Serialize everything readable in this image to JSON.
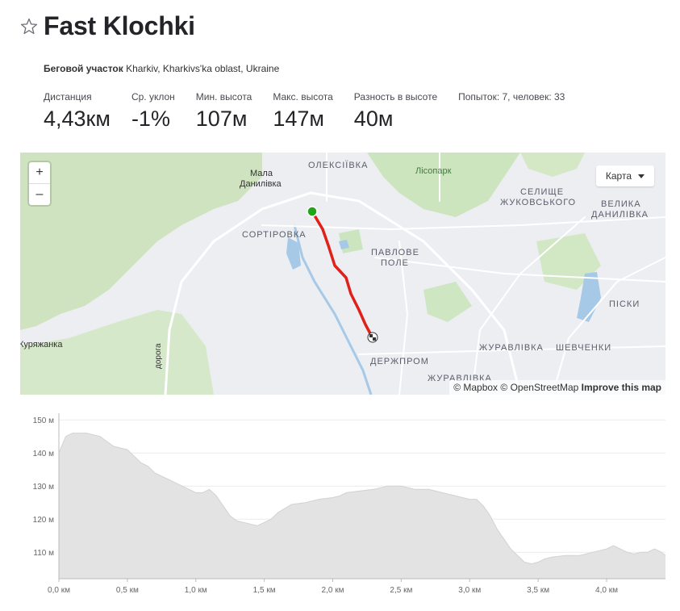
{
  "header": {
    "title": "Fast Klochki",
    "star_icon": "star-outline-icon"
  },
  "location": {
    "type_label": "Беговой участок",
    "place": "Kharkiv, Kharkivs'ka oblast, Ukraine"
  },
  "stats": [
    {
      "label": "Дистанция",
      "value": "4,43км"
    },
    {
      "label": "Ср. уклон",
      "value": "-1%"
    },
    {
      "label": "Мин. высота",
      "value": "107м"
    },
    {
      "label": "Макс. высота",
      "value": "147м"
    },
    {
      "label": "Разность в высоте",
      "value": "40м"
    }
  ],
  "attempts": {
    "label": "Попыток: 7, человек: 33"
  },
  "map": {
    "zoom_in": "+",
    "zoom_out": "–",
    "map_type": "Карта",
    "attribution": {
      "mapbox": "© Mapbox",
      "osm": "© OpenStreetMap",
      "improve": "Improve this map"
    },
    "labels": {
      "mala": "Мала",
      "danylivka": "Данилівка",
      "oleksiivka": "ОЛЕКСІЇВКА",
      "lisopark": "Лісопарк",
      "selyshche": "СЕЛИЩЕ",
      "zhukovskoho": "ЖУКОВСЬКОГО",
      "velyka": "ВЕЛИКА",
      "danylivka_big": "ДАНИЛІВКА",
      "sortirovka": "СОРТІРОВКА",
      "pavlove": "ПАВЛОВЕ",
      "pole": "ПОЛЕ",
      "pisky": "ПІСКИ",
      "kuryazhanka": "Куряжанка",
      "zhuravlivka": "ЖУРАВЛІВКА",
      "shevchenky": "ШЕВЧЕНКИ",
      "derzhprom": "ДЕРЖПРОМ",
      "zhuravlivka2": "ЖУРАВЛІВКА",
      "doroha": "дорога"
    },
    "colors": {
      "route": "#e0211b",
      "start": "#21a41a",
      "park": "#cde5bf",
      "water": "#a6c9e8",
      "road": "#ffffff"
    }
  },
  "chart_data": {
    "type": "area",
    "xlabel": "",
    "ylabel": "",
    "xlim": [
      0,
      4.43
    ],
    "ylim": [
      102,
      152
    ],
    "x_ticks": [
      0,
      0.5,
      1.0,
      1.5,
      2.0,
      2.5,
      3.0,
      3.5,
      4.0
    ],
    "x_tick_labels": [
      "0,0 км",
      "0,5 км",
      "1,0 км",
      "1,5 км",
      "2,0 км",
      "2,5 км",
      "3,0 км",
      "3,5 км",
      "4,0 км"
    ],
    "y_ticks": [
      110,
      120,
      130,
      140,
      150
    ],
    "y_tick_labels": [
      "110 м",
      "120 м",
      "130 м",
      "140 м",
      "150 м"
    ],
    "grid": true,
    "fill_color": "#e3e3e3",
    "line_color": "#d2d2d2",
    "x": [
      0,
      0.05,
      0.1,
      0.2,
      0.3,
      0.4,
      0.5,
      0.55,
      0.6,
      0.65,
      0.7,
      0.75,
      0.8,
      0.85,
      0.9,
      0.95,
      1.0,
      1.05,
      1.1,
      1.15,
      1.2,
      1.25,
      1.3,
      1.35,
      1.4,
      1.45,
      1.5,
      1.55,
      1.6,
      1.7,
      1.8,
      1.9,
      2.0,
      2.05,
      2.1,
      2.2,
      2.3,
      2.4,
      2.5,
      2.6,
      2.7,
      2.8,
      2.9,
      3.0,
      3.05,
      3.1,
      3.15,
      3.2,
      3.25,
      3.3,
      3.35,
      3.4,
      3.45,
      3.5,
      3.55,
      3.6,
      3.7,
      3.8,
      3.9,
      4.0,
      4.05,
      4.1,
      4.15,
      4.2,
      4.25,
      4.3,
      4.35,
      4.4,
      4.43
    ],
    "y": [
      140,
      145,
      146,
      146,
      145,
      142,
      141,
      139,
      137,
      136,
      134,
      133,
      132,
      131,
      130,
      129,
      128,
      128,
      129,
      127,
      124,
      121,
      119.5,
      119,
      118.5,
      118,
      119,
      120,
      122,
      124.5,
      125,
      126,
      126.5,
      127,
      128,
      128.5,
      129,
      130,
      130,
      129,
      129,
      128,
      127,
      126,
      126,
      124,
      121,
      117,
      114,
      111,
      109,
      107,
      106.5,
      107,
      108,
      108.5,
      109,
      109,
      110,
      111,
      112,
      111,
      110,
      109.5,
      110,
      110,
      111,
      110,
      109
    ]
  }
}
